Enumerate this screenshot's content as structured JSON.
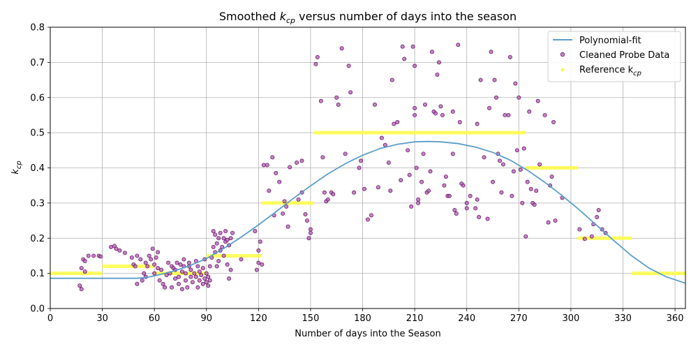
{
  "chart_data": {
    "type": "scatter",
    "title_prefix": "Smoothed ",
    "title_var_main": "k",
    "title_var_sub": "cp",
    "title_suffix": " versus number of days into the season",
    "xlabel": "Number of days into the Season",
    "ylabel_main": "k",
    "ylabel_sub": "cp",
    "xlim": [
      0,
      366
    ],
    "ylim": [
      0,
      0.8
    ],
    "x_ticks": [
      0,
      30,
      60,
      90,
      120,
      150,
      180,
      210,
      240,
      270,
      300,
      330,
      360
    ],
    "y_ticks": [
      0.0,
      0.1,
      0.2,
      0.3,
      0.4,
      0.5,
      0.6,
      0.7,
      0.8
    ],
    "x_tick_labels": [
      "0",
      "30",
      "60",
      "90",
      "120",
      "150",
      "180",
      "210",
      "240",
      "270",
      "300",
      "330",
      "360"
    ],
    "y_tick_labels": [
      "0.0",
      "0.1",
      "0.2",
      "0.3",
      "0.4",
      "0.5",
      "0.6",
      "0.7",
      "0.8"
    ],
    "grid": true,
    "legend_position": "top-right",
    "colors": {
      "fit": "#5b9ec9",
      "probe_fill": "#b05cb0",
      "probe_edge": "#6a1a6a",
      "reference": "#ffff44"
    },
    "legend": [
      {
        "type": "line",
        "label_text": "Polynomial-fit",
        "label_sub": ""
      },
      {
        "type": "marker",
        "label_text": "Cleaned Probe Data",
        "label_sub": ""
      },
      {
        "type": "reference",
        "label_text": "Reference k",
        "label_sub": "cp"
      }
    ],
    "series": [
      {
        "name": "Polynomial-fit",
        "type": "line",
        "points": [
          [
            0,
            0.086
          ],
          [
            50,
            0.086
          ],
          [
            55,
            0.088
          ],
          [
            60,
            0.093
          ],
          [
            70,
            0.105
          ],
          [
            80,
            0.121
          ],
          [
            90,
            0.142
          ],
          [
            100,
            0.171
          ],
          [
            110,
            0.203
          ],
          [
            120,
            0.238
          ],
          [
            130,
            0.275
          ],
          [
            140,
            0.313
          ],
          [
            150,
            0.349
          ],
          [
            160,
            0.383
          ],
          [
            170,
            0.412
          ],
          [
            180,
            0.436
          ],
          [
            190,
            0.455
          ],
          [
            200,
            0.467
          ],
          [
            210,
            0.474
          ],
          [
            218,
            0.475
          ],
          [
            225,
            0.474
          ],
          [
            235,
            0.469
          ],
          [
            245,
            0.459
          ],
          [
            255,
            0.444
          ],
          [
            265,
            0.422
          ],
          [
            275,
            0.393
          ],
          [
            285,
            0.359
          ],
          [
            295,
            0.321
          ],
          [
            305,
            0.28
          ],
          [
            315,
            0.236
          ],
          [
            325,
            0.192
          ],
          [
            335,
            0.15
          ],
          [
            345,
            0.115
          ],
          [
            355,
            0.09
          ],
          [
            366,
            0.072
          ]
        ]
      },
      {
        "name": "Cleaned Probe Data",
        "type": "scatter",
        "points": [
          [
            17,
            0.065
          ],
          [
            18,
            0.055
          ],
          [
            18,
            0.115
          ],
          [
            19,
            0.14
          ],
          [
            20,
            0.135
          ],
          [
            20,
            0.105
          ],
          [
            22,
            0.15
          ],
          [
            25,
            0.15
          ],
          [
            28,
            0.15
          ],
          [
            29,
            0.148
          ],
          [
            35,
            0.175
          ],
          [
            37,
            0.178
          ],
          [
            38,
            0.17
          ],
          [
            40,
            0.165
          ],
          [
            43,
            0.158
          ],
          [
            47,
            0.145
          ],
          [
            48,
            0.125
          ],
          [
            49,
            0.12
          ],
          [
            50,
            0.15
          ],
          [
            50,
            0.07
          ],
          [
            52,
            0.14
          ],
          [
            53,
            0.08
          ],
          [
            54,
            0.1
          ],
          [
            55,
            0.09
          ],
          [
            55,
            0.13
          ],
          [
            56,
            0.12
          ],
          [
            57,
            0.15
          ],
          [
            58,
            0.14
          ],
          [
            59,
            0.17
          ],
          [
            60,
            0.125
          ],
          [
            60,
            0.1
          ],
          [
            61,
            0.145
          ],
          [
            62,
            0.115
          ],
          [
            62,
            0.16
          ],
          [
            63,
            0.08
          ],
          [
            64,
            0.11
          ],
          [
            65,
            0.07
          ],
          [
            66,
            0.06
          ],
          [
            67,
            0.095
          ],
          [
            68,
            0.13
          ],
          [
            69,
            0.1
          ],
          [
            70,
            0.12
          ],
          [
            70,
            0.06
          ],
          [
            71,
            0.115
          ],
          [
            72,
            0.11
          ],
          [
            72,
            0.085
          ],
          [
            73,
            0.13
          ],
          [
            74,
            0.09
          ],
          [
            74,
            0.07
          ],
          [
            75,
            0.125
          ],
          [
            76,
            0.105
          ],
          [
            76,
            0.055
          ],
          [
            77,
            0.14
          ],
          [
            77,
            0.12
          ],
          [
            78,
            0.1
          ],
          [
            78,
            0.08
          ],
          [
            79,
            0.06
          ],
          [
            80,
            0.12
          ],
          [
            80,
            0.13
          ],
          [
            81,
            0.09
          ],
          [
            81,
            0.11
          ],
          [
            82,
            0.075
          ],
          [
            83,
            0.1
          ],
          [
            84,
            0.135
          ],
          [
            84,
            0.09
          ],
          [
            85,
            0.06
          ],
          [
            85,
            0.12
          ],
          [
            86,
            0.08
          ],
          [
            86,
            0.105
          ],
          [
            87,
            0.095
          ],
          [
            88,
            0.07
          ],
          [
            88,
            0.115
          ],
          [
            89,
            0.085
          ],
          [
            89,
            0.14
          ],
          [
            90,
            0.075
          ],
          [
            90,
            0.1
          ],
          [
            91,
            0.065
          ],
          [
            91,
            0.09
          ],
          [
            92,
            0.12
          ],
          [
            92,
            0.08
          ],
          [
            93,
            0.145
          ],
          [
            94,
            0.175
          ],
          [
            94,
            0.22
          ],
          [
            95,
            0.21
          ],
          [
            95,
            0.16
          ],
          [
            96,
            0.185
          ],
          [
            96,
            0.12
          ],
          [
            97,
            0.2
          ],
          [
            97,
            0.135
          ],
          [
            98,
            0.165
          ],
          [
            98,
            0.215
          ],
          [
            99,
            0.175
          ],
          [
            100,
            0.2
          ],
          [
            100,
            0.15
          ],
          [
            101,
            0.19
          ],
          [
            101,
            0.22
          ],
          [
            102,
            0.195
          ],
          [
            102,
            0.125
          ],
          [
            103,
            0.18
          ],
          [
            103,
            0.085
          ],
          [
            104,
            0.2
          ],
          [
            104,
            0.11
          ],
          [
            105,
            0.215
          ],
          [
            110,
            0.14
          ],
          [
            118,
            0.22
          ],
          [
            119,
            0.11
          ],
          [
            120,
            0.165
          ],
          [
            120,
            0.13
          ],
          [
            121,
            0.19
          ],
          [
            122,
            0.125
          ],
          [
            123,
            0.408
          ],
          [
            125,
            0.408
          ],
          [
            126,
            0.335
          ],
          [
            128,
            0.43
          ],
          [
            129,
            0.265
          ],
          [
            130,
            0.385
          ],
          [
            132,
            0.36
          ],
          [
            134,
            0.27
          ],
          [
            135,
            0.305
          ],
          [
            136,
            0.29
          ],
          [
            137,
            0.233
          ],
          [
            138,
            0.402
          ],
          [
            142,
            0.415
          ],
          [
            143,
            0.31
          ],
          [
            145,
            0.42
          ],
          [
            145,
            0.33
          ],
          [
            147,
            0.268
          ],
          [
            148,
            0.25
          ],
          [
            149,
            0.2
          ],
          [
            150,
            0.215
          ],
          [
            150,
            0.225
          ],
          [
            153,
            0.695
          ],
          [
            154,
            0.715
          ],
          [
            156,
            0.59
          ],
          [
            157,
            0.43
          ],
          [
            158,
            0.33
          ],
          [
            159,
            0.305
          ],
          [
            160,
            0.31
          ],
          [
            162,
            0.33
          ],
          [
            163,
            0.325
          ],
          [
            165,
            0.6
          ],
          [
            166,
            0.58
          ],
          [
            168,
            0.74
          ],
          [
            170,
            0.44
          ],
          [
            172,
            0.69
          ],
          [
            173,
            0.615
          ],
          [
            175,
            0.33
          ],
          [
            178,
            0.4
          ],
          [
            179,
            0.42
          ],
          [
            181,
            0.34
          ],
          [
            183,
            0.253
          ],
          [
            185,
            0.265
          ],
          [
            187,
            0.58
          ],
          [
            189,
            0.345
          ],
          [
            191,
            0.485
          ],
          [
            193,
            0.465
          ],
          [
            195,
            0.415
          ],
          [
            196,
            0.335
          ],
          [
            197,
            0.65
          ],
          [
            198,
            0.525
          ],
          [
            200,
            0.53
          ],
          [
            202,
            0.365
          ],
          [
            203,
            0.745
          ],
          [
            204,
            0.71
          ],
          [
            206,
            0.45
          ],
          [
            207,
            0.38
          ],
          [
            208,
            0.29
          ],
          [
            209,
            0.745
          ],
          [
            210,
            0.69
          ],
          [
            210,
            0.57
          ],
          [
            210,
            0.55
          ],
          [
            211,
            0.4
          ],
          [
            212,
            0.31
          ],
          [
            212,
            0.3
          ],
          [
            214,
            0.36
          ],
          [
            215,
            0.44
          ],
          [
            216,
            0.58
          ],
          [
            217,
            0.33
          ],
          [
            218,
            0.335
          ],
          [
            219,
            0.39
          ],
          [
            220,
            0.73
          ],
          [
            221,
            0.56
          ],
          [
            222,
            0.555
          ],
          [
            223,
            0.665
          ],
          [
            224,
            0.7
          ],
          [
            225,
            0.575
          ],
          [
            226,
            0.55
          ],
          [
            227,
            0.35
          ],
          [
            228,
            0.375
          ],
          [
            229,
            0.32
          ],
          [
            230,
            0.32
          ],
          [
            232,
            0.44
          ],
          [
            232,
            0.56
          ],
          [
            233,
            0.28
          ],
          [
            234,
            0.27
          ],
          [
            235,
            0.75
          ],
          [
            236,
            0.53
          ],
          [
            237,
            0.355
          ],
          [
            238,
            0.35
          ],
          [
            240,
            0.285
          ],
          [
            240,
            0.3
          ],
          [
            242,
            0.32
          ],
          [
            245,
            0.285
          ],
          [
            246,
            0.525
          ],
          [
            246,
            0.31
          ],
          [
            247,
            0.26
          ],
          [
            248,
            0.65
          ],
          [
            250,
            0.43
          ],
          [
            252,
            0.255
          ],
          [
            253,
            0.57
          ],
          [
            254,
            0.73
          ],
          [
            255,
            0.36
          ],
          [
            256,
            0.65
          ],
          [
            257,
            0.6
          ],
          [
            258,
            0.44
          ],
          [
            259,
            0.42
          ],
          [
            260,
            0.33
          ],
          [
            261,
            0.41
          ],
          [
            262,
            0.55
          ],
          [
            264,
            0.55
          ],
          [
            265,
            0.715
          ],
          [
            266,
            0.32
          ],
          [
            267,
            0.39
          ],
          [
            268,
            0.64
          ],
          [
            269,
            0.45
          ],
          [
            270,
            0.6
          ],
          [
            271,
            0.395
          ],
          [
            272,
            0.3
          ],
          [
            273,
            0.455
          ],
          [
            274,
            0.205
          ],
          [
            275,
            0.36
          ],
          [
            276,
            0.56
          ],
          [
            277,
            0.34
          ],
          [
            278,
            0.3
          ],
          [
            279,
            0.295
          ],
          [
            280,
            0.335
          ],
          [
            281,
            0.59
          ],
          [
            282,
            0.41
          ],
          [
            285,
            0.55
          ],
          [
            287,
            0.245
          ],
          [
            288,
            0.35
          ],
          [
            289,
            0.375
          ],
          [
            290,
            0.53
          ],
          [
            291,
            0.25
          ],
          [
            295,
            0.315
          ],
          [
            305,
            0.225
          ],
          [
            308,
            0.198
          ],
          [
            312,
            0.205
          ],
          [
            313,
            0.24
          ],
          [
            315,
            0.26
          ],
          [
            316,
            0.28
          ],
          [
            318,
            0.225
          ],
          [
            320,
            0.215
          ]
        ]
      },
      {
        "name": "Reference k_cp",
        "type": "step",
        "segments": [
          [
            0,
            30,
            0.1
          ],
          [
            30,
            60,
            0.12
          ],
          [
            60,
            90,
            0.1
          ],
          [
            90,
            122,
            0.15
          ],
          [
            122,
            152,
            0.3
          ],
          [
            152,
            274,
            0.5
          ],
          [
            274,
            304,
            0.4
          ],
          [
            304,
            335,
            0.2
          ],
          [
            335,
            366,
            0.1
          ]
        ]
      }
    ]
  }
}
